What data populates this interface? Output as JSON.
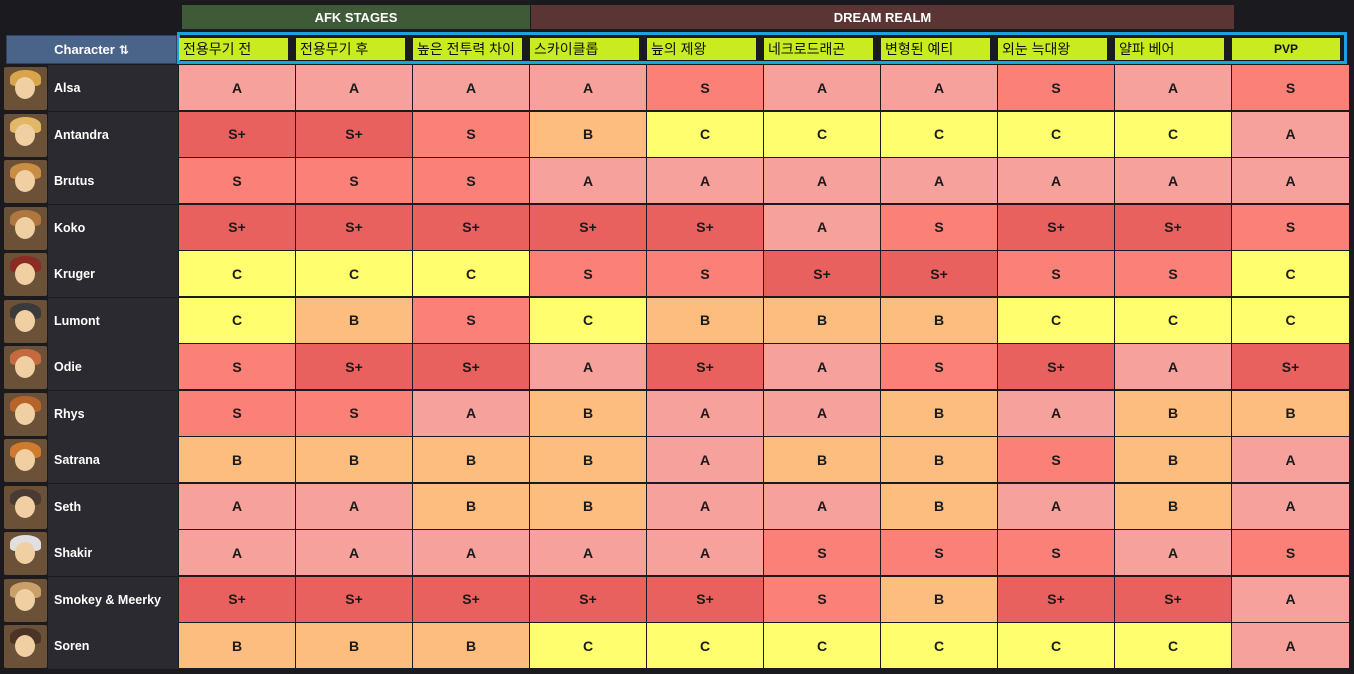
{
  "header": {
    "groups": {
      "afk": "AFK STAGES",
      "dream": "DREAM REALM"
    },
    "character_label": "Character",
    "sort_icon": "sort-icon",
    "columns": [
      "전용무기 전",
      "전용무기 후",
      "높은 전투력 차이",
      "스카이클롭",
      "늪의 제왕",
      "네크로드래곤",
      "변형된 예티",
      "외눈 늑대왕",
      "얄파 베어",
      "PVP"
    ]
  },
  "colors": {
    "S+": "#e8615e",
    "S": "#fb8078",
    "A": "#f7a19d",
    "B": "#fdbd7e",
    "C": "#fefe6e",
    "accent_border": "#1aa3dc",
    "column_header": "#c8ec1f"
  },
  "rows": [
    {
      "name": "Alsa",
      "avatar": "alsa-avatar",
      "grades": [
        "A",
        "A",
        "A",
        "A",
        "S",
        "A",
        "A",
        "S",
        "A",
        "S"
      ]
    },
    {
      "name": "Antandra",
      "avatar": "antandra-avatar",
      "grades": [
        "S+",
        "S+",
        "S",
        "B",
        "C",
        "C",
        "C",
        "C",
        "C",
        "A"
      ]
    },
    {
      "name": "Brutus",
      "avatar": "brutus-avatar",
      "grades": [
        "S",
        "S",
        "S",
        "A",
        "A",
        "A",
        "A",
        "A",
        "A",
        "A"
      ]
    },
    {
      "name": "Koko",
      "avatar": "koko-avatar",
      "grades": [
        "S+",
        "S+",
        "S+",
        "S+",
        "S+",
        "A",
        "S",
        "S+",
        "S+",
        "S"
      ]
    },
    {
      "name": "Kruger",
      "avatar": "kruger-avatar",
      "grades": [
        "C",
        "C",
        "C",
        "S",
        "S",
        "S+",
        "S+",
        "S",
        "S",
        "C"
      ]
    },
    {
      "name": "Lumont",
      "avatar": "lumont-avatar",
      "grades": [
        "C",
        "B",
        "S",
        "C",
        "B",
        "B",
        "B",
        "C",
        "C",
        "C"
      ]
    },
    {
      "name": "Odie",
      "avatar": "odie-avatar",
      "grades": [
        "S",
        "S+",
        "S+",
        "A",
        "S+",
        "A",
        "S",
        "S+",
        "A",
        "S+"
      ]
    },
    {
      "name": "Rhys",
      "avatar": "rhys-avatar",
      "grades": [
        "S",
        "S",
        "A",
        "B",
        "A",
        "A",
        "B",
        "A",
        "B",
        "B"
      ]
    },
    {
      "name": "Satrana",
      "avatar": "satrana-avatar",
      "grades": [
        "B",
        "B",
        "B",
        "B",
        "A",
        "B",
        "B",
        "S",
        "B",
        "A"
      ]
    },
    {
      "name": "Seth",
      "avatar": "seth-avatar",
      "grades": [
        "A",
        "A",
        "B",
        "B",
        "A",
        "A",
        "B",
        "A",
        "B",
        "A"
      ]
    },
    {
      "name": "Shakir",
      "avatar": "shakir-avatar",
      "grades": [
        "A",
        "A",
        "A",
        "A",
        "A",
        "S",
        "S",
        "S",
        "A",
        "S"
      ]
    },
    {
      "name": "Smokey & Meerky",
      "avatar": "smokey-meerky-avatar",
      "grades": [
        "S+",
        "S+",
        "S+",
        "S+",
        "S+",
        "S",
        "B",
        "S+",
        "S+",
        "A"
      ]
    },
    {
      "name": "Soren",
      "avatar": "soren-avatar",
      "grades": [
        "B",
        "B",
        "B",
        "C",
        "C",
        "C",
        "C",
        "C",
        "C",
        "A"
      ]
    }
  ]
}
